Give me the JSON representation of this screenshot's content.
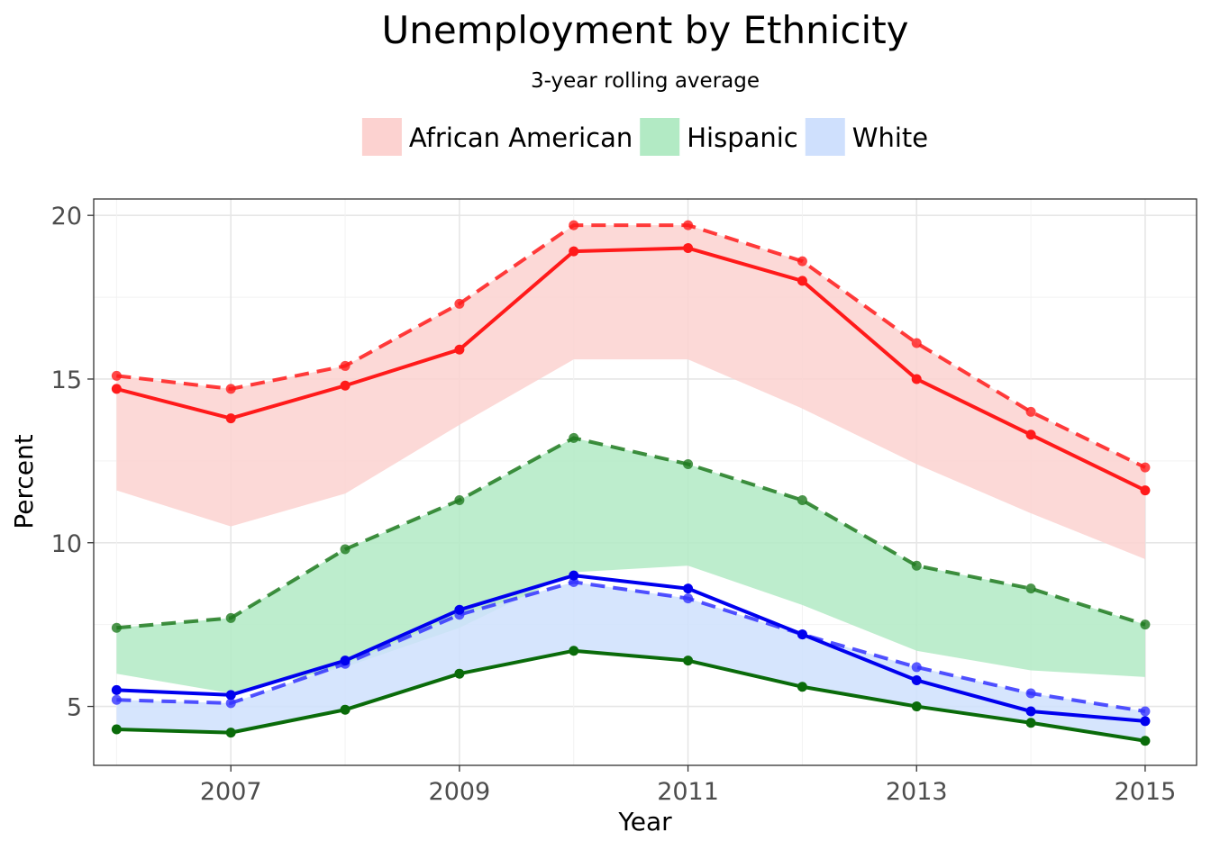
{
  "chart_data": {
    "type": "line",
    "title": "Unemployment by Ethnicity",
    "subtitle": "3-year rolling average",
    "xlabel": "Year",
    "ylabel": "Percent",
    "x": [
      2006,
      2007,
      2008,
      2009,
      2010,
      2011,
      2012,
      2013,
      2014,
      2015
    ],
    "xlim": [
      2005.8,
      2015.45
    ],
    "ylim": [
      3.2,
      20.5
    ],
    "xticks": [
      "2007",
      "2009",
      "2011",
      "2013",
      "2015"
    ],
    "yticks": [
      "5",
      "10",
      "15",
      "20"
    ],
    "grid": true,
    "legend_position": "top",
    "legend": [
      {
        "label": "African American",
        "color": "#ff4040"
      },
      {
        "label": "Hispanic",
        "color": "#33c455"
      },
      {
        "label": "White",
        "color": "#7aa6ff"
      }
    ],
    "bands": [
      {
        "group": "African American",
        "fill": "#fcd2d0",
        "lower": [
          11.6,
          10.5,
          11.5,
          13.6,
          15.6,
          15.6,
          14.1,
          12.4,
          10.9,
          9.5
        ],
        "upper": [
          15.1,
          14.7,
          15.4,
          17.3,
          19.7,
          19.7,
          18.6,
          16.1,
          14.0,
          12.3
        ]
      },
      {
        "group": "Hispanic",
        "fill": "#b2eac4",
        "lower": [
          6.0,
          5.4,
          6.2,
          7.4,
          9.1,
          9.3,
          8.1,
          6.7,
          6.1,
          5.9
        ],
        "upper": [
          7.4,
          7.7,
          9.8,
          11.3,
          13.2,
          12.4,
          11.3,
          9.3,
          8.6,
          7.5
        ]
      },
      {
        "group": "White",
        "fill": "#cfe0fd",
        "lower": [
          4.3,
          4.2,
          4.9,
          6.0,
          6.7,
          6.4,
          5.6,
          5.0,
          4.5,
          3.95
        ],
        "upper": [
          5.2,
          5.1,
          6.3,
          7.8,
          8.8,
          8.3,
          7.2,
          6.2,
          5.4,
          4.85
        ]
      }
    ],
    "series": [
      {
        "group": "African American",
        "color": "#ff1a1a",
        "dash": true,
        "values": [
          15.1,
          14.7,
          15.4,
          17.3,
          19.7,
          19.7,
          18.6,
          16.1,
          14.0,
          12.3
        ]
      },
      {
        "group": "African American",
        "color": "#ff1a1a",
        "dash": false,
        "values": [
          14.7,
          13.8,
          14.8,
          15.9,
          18.9,
          19.0,
          18.0,
          15.0,
          13.3,
          11.6
        ]
      },
      {
        "group": "Hispanic",
        "color": "#1f7a1f",
        "dash": true,
        "values": [
          7.4,
          7.7,
          9.8,
          11.3,
          13.2,
          12.4,
          11.3,
          9.3,
          8.6,
          7.5
        ]
      },
      {
        "group": "Hispanic",
        "color": "#0a6b0a",
        "dash": false,
        "values": [
          4.3,
          4.2,
          4.9,
          6.0,
          6.7,
          6.4,
          5.6,
          5.0,
          4.5,
          3.95
        ]
      },
      {
        "group": "White",
        "color": "#3333ff",
        "dash": true,
        "values": [
          5.2,
          5.1,
          6.3,
          7.8,
          8.8,
          8.3,
          7.2,
          6.2,
          5.4,
          4.85
        ]
      },
      {
        "group": "White",
        "color": "#0000ee",
        "dash": false,
        "values": [
          5.5,
          5.35,
          6.4,
          7.95,
          9.0,
          8.6,
          7.2,
          5.8,
          4.85,
          4.55
        ]
      }
    ]
  }
}
